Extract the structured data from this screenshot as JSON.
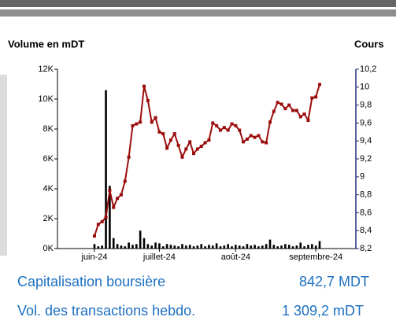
{
  "chart_data": {
    "type": "bar",
    "ylabel": "Volume en mDT",
    "y2label": "Cours",
    "categories": [
      "juin-24",
      null,
      null,
      null,
      null,
      null,
      null,
      null,
      null,
      null,
      null,
      null,
      null,
      null,
      null,
      null,
      null,
      "juillet-24",
      null,
      null,
      null,
      null,
      null,
      null,
      null,
      null,
      null,
      null,
      null,
      null,
      null,
      null,
      null,
      null,
      null,
      null,
      null,
      "août-24",
      null,
      null,
      null,
      null,
      null,
      null,
      null,
      null,
      null,
      null,
      null,
      null,
      null,
      null,
      null,
      null,
      null,
      null,
      null,
      null,
      "septembre-24",
      null
    ],
    "ylim": [
      0,
      12000
    ],
    "yticks": [
      {
        "value": 0,
        "label": "0K"
      },
      {
        "value": 2000,
        "label": "2K"
      },
      {
        "value": 4000,
        "label": "4K"
      },
      {
        "value": 6000,
        "label": "6K"
      },
      {
        "value": 8000,
        "label": "8K"
      },
      {
        "value": 10000,
        "label": "10K"
      },
      {
        "value": 12000,
        "label": "12K"
      }
    ],
    "y2lim": [
      8.2,
      10.2
    ],
    "y2ticks": [
      {
        "value": 8.2,
        "label": "8,2"
      },
      {
        "value": 8.4,
        "label": "8,4"
      },
      {
        "value": 8.6,
        "label": "8,6"
      },
      {
        "value": 8.8,
        "label": "8,8"
      },
      9,
      {
        "value": 9.2,
        "label": "9,2"
      },
      {
        "value": 9.4,
        "label": "9,4"
      },
      {
        "value": 9.6,
        "label": "9,6"
      },
      {
        "value": 9.8,
        "label": "9,8"
      },
      10,
      {
        "value": 10.2,
        "label": "10,2"
      }
    ],
    "series": [
      {
        "type": "bar",
        "color": "#000000",
        "values": [
          300,
          150,
          200,
          10600,
          4200,
          700,
          300,
          200,
          150,
          400,
          250,
          300,
          1200,
          700,
          300,
          200,
          400,
          350,
          150,
          300,
          250,
          200,
          150,
          300,
          200,
          250,
          150,
          200,
          300,
          150,
          250,
          200,
          350,
          150,
          200,
          300,
          150,
          250,
          200,
          150,
          300,
          200,
          250,
          150,
          200,
          300,
          600,
          250,
          150,
          200,
          300,
          250,
          150,
          200,
          400,
          150,
          250,
          300,
          200,
          500
        ]
      },
      {
        "type": "line",
        "axis": "y2",
        "color": "#9b0d0d",
        "values": [
          8.34,
          8.47,
          8.5,
          8.55,
          8.85,
          8.66,
          8.76,
          8.8,
          8.95,
          9.22,
          9.57,
          9.59,
          9.61,
          10.01,
          9.85,
          9.61,
          9.66,
          9.5,
          9.48,
          9.32,
          9.41,
          9.48,
          9.35,
          9.22,
          9.31,
          9.39,
          9.26,
          9.31,
          9.34,
          9.38,
          9.41,
          9.6,
          9.57,
          9.52,
          9.55,
          9.52,
          9.59,
          9.57,
          9.52,
          9.39,
          9.42,
          9.46,
          9.44,
          9.46,
          9.39,
          9.38,
          9.61,
          9.73,
          9.83,
          9.81,
          9.76,
          9.8,
          9.74,
          9.74,
          9.67,
          9.7,
          9.63,
          9.88,
          9.89,
          10.03
        ]
      }
    ]
  },
  "stats": [
    {
      "label": "Capitalisation boursière",
      "value": "842,7 MDT"
    },
    {
      "label": "Vol. des transactions hebdo.",
      "value": "1 309,2 mDT"
    }
  ]
}
